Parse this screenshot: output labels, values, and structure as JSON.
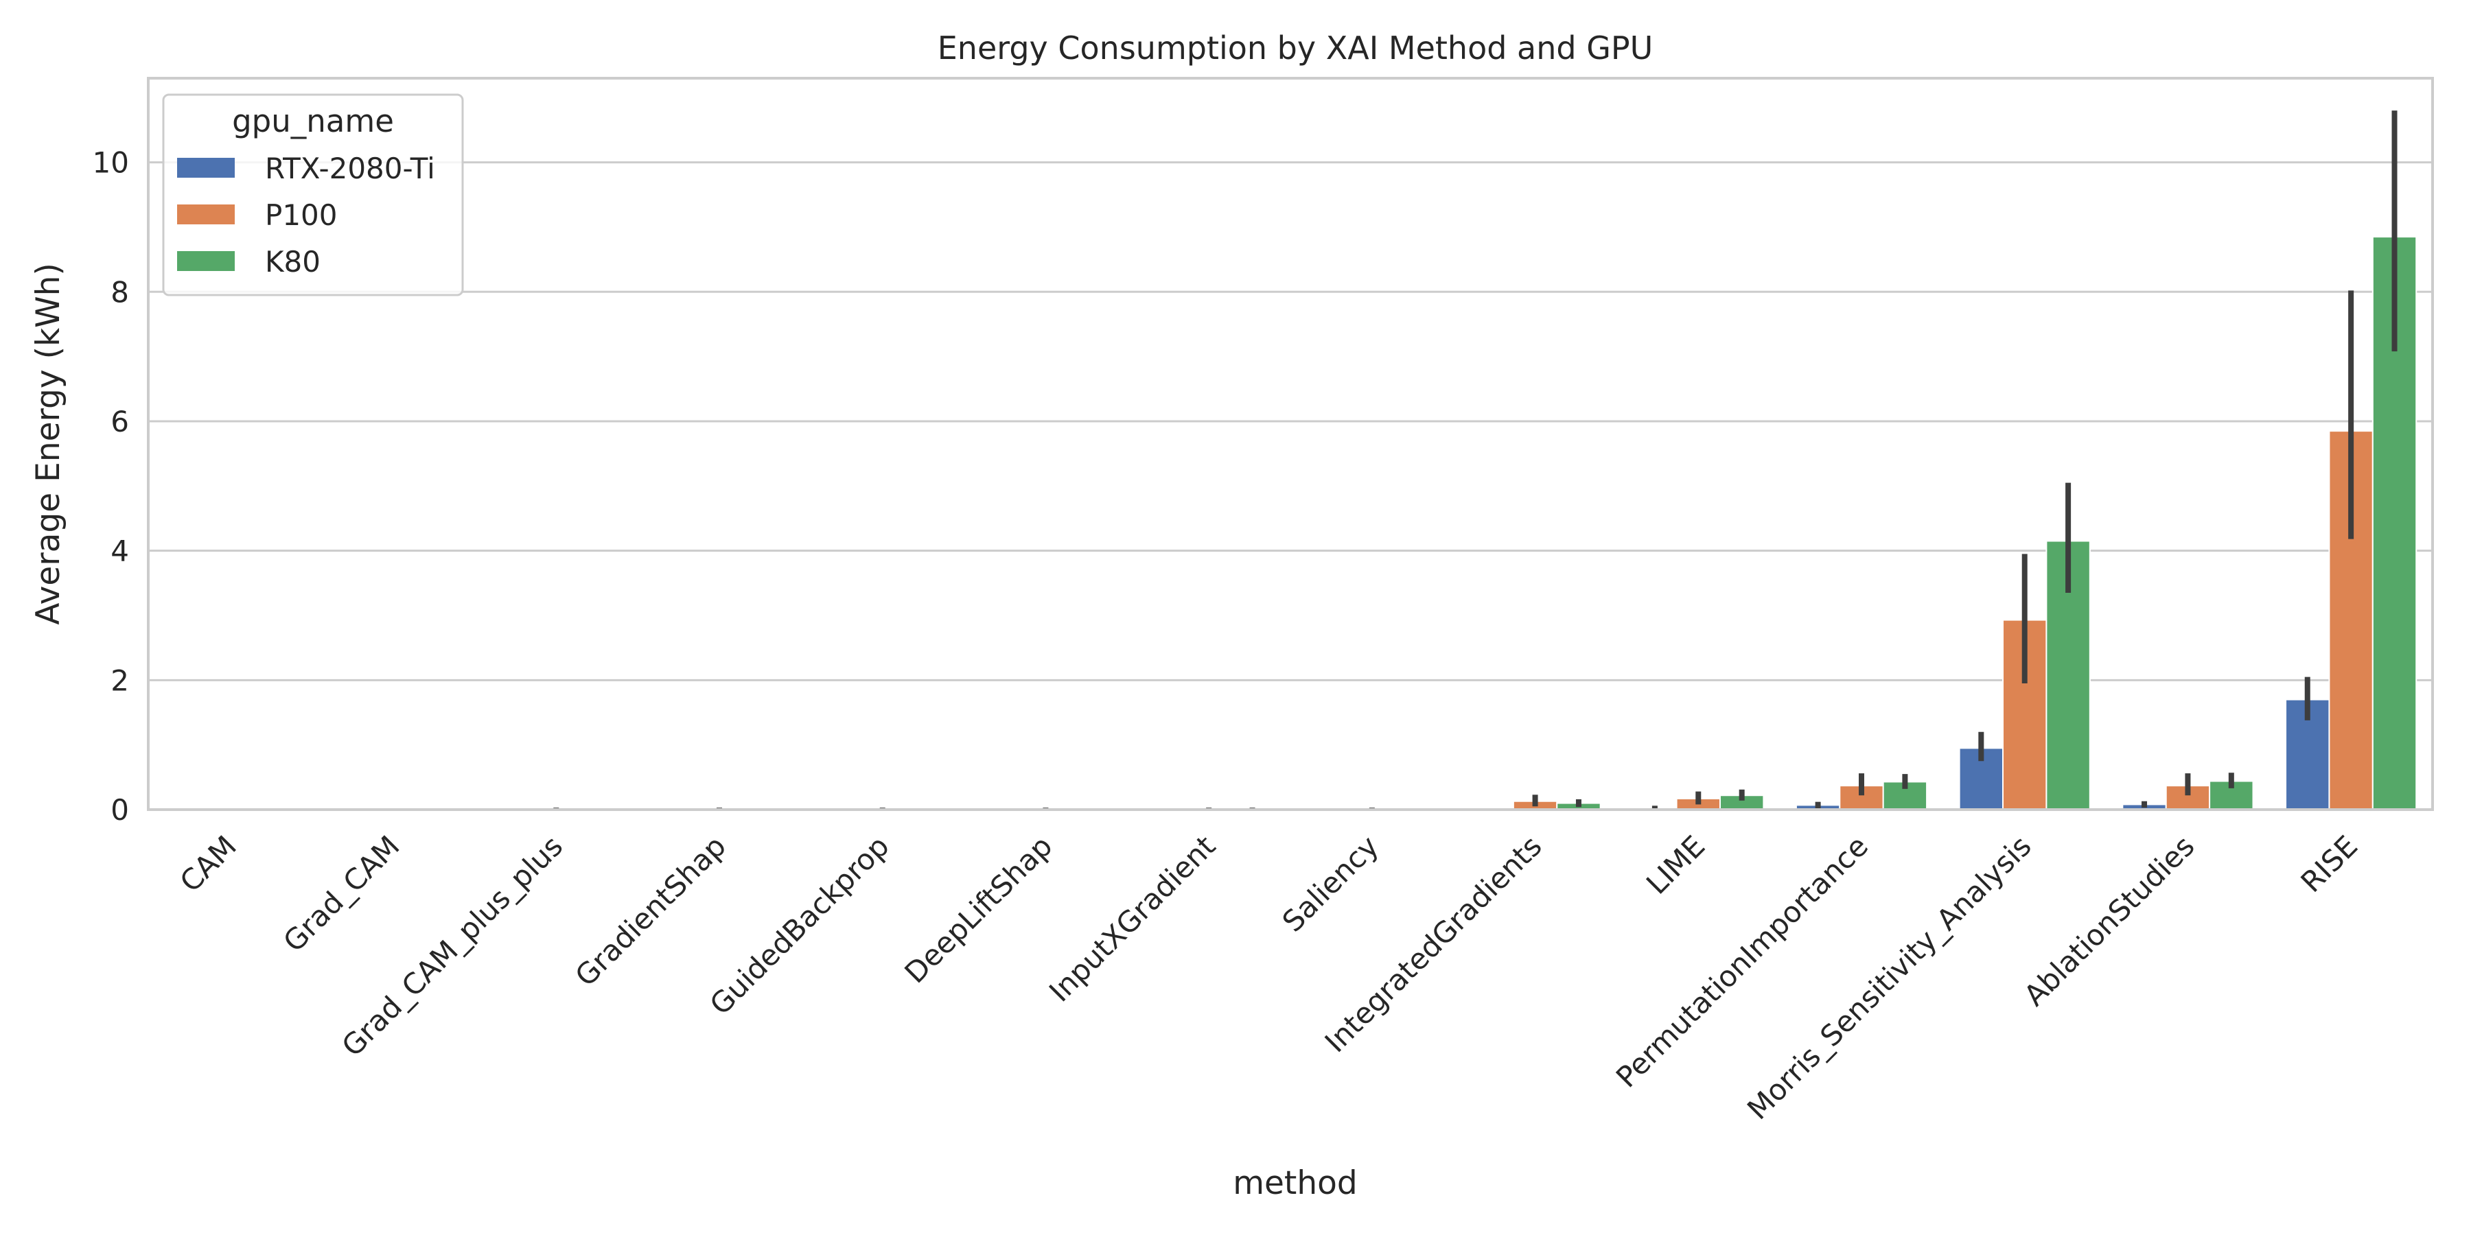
{
  "chart_data": {
    "type": "bar",
    "title": "Energy Consumption by XAI Method and GPU",
    "xlabel": "method",
    "ylabel": "Average Energy (kWh)",
    "ylim": [
      0,
      11.3
    ],
    "yticks": [
      0,
      2,
      4,
      6,
      8,
      10
    ],
    "grid": true,
    "legend": {
      "title": "gpu_name",
      "position": "top-left"
    },
    "categories": [
      "CAM",
      "Grad_CAM",
      "Grad_CAM_plus_plus",
      "GradientShap",
      "GuidedBackprop",
      "DeepLiftShap",
      "InputXGradient",
      "Saliency",
      "IntegratedGradients",
      "LIME",
      "PermutationImportance",
      "Morris_Sensitivity_Analysis",
      "AblationStudies",
      "RISE"
    ],
    "series": [
      {
        "name": "RTX-2080-Ti",
        "color": "#4c72b0",
        "values": [
          0.001,
          0.001,
          0.001,
          0.001,
          0.001,
          0.001,
          0.001,
          0.001,
          0.01,
          0.02,
          0.07,
          0.95,
          0.08,
          1.7
        ],
        "ci_low": [
          0.001,
          0.001,
          0.001,
          0.001,
          0.001,
          0.001,
          0.001,
          0.001,
          0.005,
          0.0,
          0.02,
          0.75,
          0.03,
          1.38
        ],
        "ci_high": [
          0.001,
          0.001,
          0.001,
          0.001,
          0.001,
          0.001,
          0.001,
          0.001,
          0.02,
          0.06,
          0.12,
          1.2,
          0.13,
          2.05
        ]
      },
      {
        "name": "P100",
        "color": "#dd8452",
        "values": [
          0.002,
          0.002,
          0.003,
          0.002,
          0.002,
          0.003,
          0.002,
          0.002,
          0.13,
          0.17,
          0.37,
          2.93,
          0.37,
          5.85
        ],
        "ci_low": [
          0.002,
          0.002,
          0.0,
          0.0,
          0.0,
          0.0,
          0.0,
          0.0,
          0.05,
          0.08,
          0.22,
          1.95,
          0.22,
          4.18
        ],
        "ci_high": [
          0.002,
          0.002,
          0.03,
          0.03,
          0.03,
          0.03,
          0.03,
          0.03,
          0.23,
          0.28,
          0.56,
          3.95,
          0.56,
          8.02
        ]
      },
      {
        "name": "K80",
        "color": "#55a868",
        "values": [
          0.003,
          0.003,
          0.004,
          0.003,
          0.004,
          0.004,
          0.003,
          0.003,
          0.1,
          0.22,
          0.43,
          4.15,
          0.44,
          8.85
        ],
        "ci_low": [
          0.003,
          0.003,
          0.003,
          0.003,
          0.003,
          0.003,
          0.0,
          0.003,
          0.04,
          0.14,
          0.32,
          3.35,
          0.33,
          7.08
        ],
        "ci_high": [
          0.003,
          0.003,
          0.003,
          0.003,
          0.003,
          0.003,
          0.03,
          0.003,
          0.16,
          0.31,
          0.55,
          5.05,
          0.57,
          10.8
        ]
      }
    ]
  }
}
